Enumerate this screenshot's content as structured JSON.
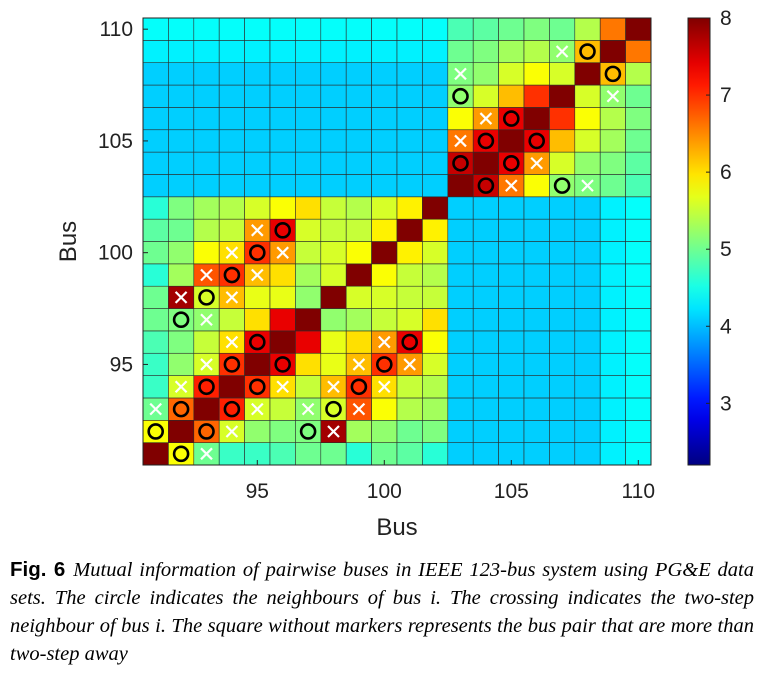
{
  "chart_data": {
    "type": "heatmap",
    "xlabel": "Bus",
    "ylabel": "Bus",
    "x_range": [
      91,
      110
    ],
    "y_range": [
      91,
      110
    ],
    "xticks": [
      95,
      100,
      105,
      110
    ],
    "yticks": [
      95,
      100,
      105,
      110
    ],
    "colorbar": {
      "min": 2.2,
      "max": 8,
      "ticks": [
        3,
        4,
        5,
        6,
        7,
        8
      ]
    },
    "cells": [
      [
        8.0,
        5.8,
        5.0,
        4.7,
        4.7,
        4.8,
        5.0,
        5.0,
        4.6,
        5.0,
        4.9,
        4.6,
        4.1,
        4.1,
        4.1,
        4.1,
        4.1,
        4.1,
        4.3,
        4.4
      ],
      [
        5.8,
        8.0,
        6.7,
        5.6,
        5.2,
        5.1,
        5.1,
        7.8,
        5.3,
        5.2,
        5.0,
        5.1,
        4.1,
        4.1,
        4.1,
        4.1,
        4.1,
        4.1,
        4.3,
        4.4
      ],
      [
        5.0,
        6.7,
        8.0,
        7.1,
        5.6,
        5.5,
        5.2,
        5.6,
        6.8,
        5.8,
        5.4,
        5.3,
        4.1,
        4.1,
        4.1,
        4.1,
        4.1,
        4.1,
        4.3,
        4.4
      ],
      [
        4.7,
        5.6,
        7.1,
        8.0,
        7.0,
        6.0,
        5.5,
        6.2,
        7.0,
        6.0,
        5.5,
        5.4,
        4.1,
        4.1,
        4.1,
        4.1,
        4.1,
        4.1,
        4.3,
        4.4
      ],
      [
        4.7,
        5.2,
        5.6,
        7.0,
        8.0,
        7.4,
        6.0,
        5.7,
        6.2,
        7.0,
        6.4,
        5.6,
        4.1,
        4.1,
        4.1,
        4.1,
        4.1,
        4.1,
        4.3,
        4.4
      ],
      [
        4.8,
        5.1,
        5.5,
        6.0,
        7.4,
        8.0,
        7.4,
        5.7,
        6.0,
        6.4,
        7.4,
        5.8,
        4.1,
        4.1,
        4.1,
        4.1,
        4.1,
        4.1,
        4.3,
        4.4
      ],
      [
        5.0,
        5.1,
        5.2,
        5.5,
        6.0,
        7.4,
        8.0,
        5.2,
        5.3,
        5.5,
        5.6,
        6.0,
        4.1,
        4.1,
        4.1,
        4.1,
        4.1,
        4.1,
        4.3,
        4.4
      ],
      [
        5.0,
        7.8,
        5.6,
        6.2,
        5.7,
        5.7,
        5.2,
        8.0,
        5.6,
        5.6,
        5.5,
        5.5,
        4.1,
        4.1,
        4.1,
        4.1,
        4.1,
        4.1,
        4.3,
        4.4
      ],
      [
        4.6,
        5.3,
        6.8,
        7.0,
        6.2,
        6.0,
        5.3,
        5.6,
        8.0,
        5.8,
        5.5,
        5.4,
        4.1,
        4.1,
        4.1,
        4.1,
        4.1,
        4.1,
        4.3,
        4.4
      ],
      [
        5.0,
        5.2,
        5.8,
        6.0,
        7.0,
        6.4,
        5.5,
        5.6,
        5.8,
        8.0,
        5.9,
        5.6,
        4.1,
        4.1,
        4.1,
        4.1,
        4.1,
        4.1,
        4.3,
        4.4
      ],
      [
        4.9,
        5.0,
        5.4,
        5.5,
        6.4,
        7.4,
        5.6,
        5.5,
        5.5,
        5.9,
        8.0,
        5.9,
        4.1,
        4.1,
        4.1,
        4.1,
        4.1,
        4.1,
        4.3,
        4.4
      ],
      [
        4.6,
        5.1,
        5.3,
        5.4,
        5.6,
        5.8,
        6.0,
        5.5,
        5.4,
        5.6,
        5.9,
        8.0,
        4.1,
        4.1,
        4.1,
        4.1,
        4.1,
        4.1,
        4.3,
        4.4
      ],
      [
        4.1,
        4.1,
        4.1,
        4.1,
        4.1,
        4.1,
        4.1,
        4.1,
        4.1,
        4.1,
        4.1,
        4.1,
        8.0,
        7.6,
        6.6,
        5.8,
        5.2,
        5.1,
        5.0,
        4.8
      ],
      [
        4.1,
        4.1,
        4.1,
        4.1,
        4.1,
        4.1,
        4.1,
        4.1,
        4.1,
        4.1,
        4.1,
        4.1,
        7.6,
        8.0,
        7.4,
        6.4,
        5.6,
        5.2,
        5.1,
        4.9
      ],
      [
        4.1,
        4.1,
        4.1,
        4.1,
        4.1,
        4.1,
        4.1,
        4.1,
        4.1,
        4.1,
        4.1,
        4.1,
        6.6,
        7.4,
        8.0,
        7.4,
        6.2,
        5.6,
        5.3,
        5.0
      ],
      [
        4.1,
        4.1,
        4.1,
        4.1,
        4.1,
        4.1,
        4.1,
        4.1,
        4.1,
        4.1,
        4.1,
        4.1,
        5.8,
        6.4,
        7.4,
        8.0,
        7.0,
        5.8,
        5.4,
        5.1
      ],
      [
        4.1,
        4.1,
        4.1,
        4.1,
        4.1,
        4.1,
        4.1,
        4.1,
        4.1,
        4.1,
        4.1,
        4.1,
        5.2,
        5.6,
        6.2,
        7.0,
        8.0,
        5.6,
        5.2,
        5.0
      ],
      [
        4.1,
        4.1,
        4.1,
        4.1,
        4.1,
        4.1,
        4.1,
        4.1,
        4.1,
        4.1,
        4.1,
        4.1,
        5.1,
        5.2,
        5.6,
        5.8,
        5.6,
        8.0,
        6.2,
        5.4
      ],
      [
        4.3,
        4.3,
        4.3,
        4.3,
        4.3,
        4.3,
        4.3,
        4.3,
        4.3,
        4.3,
        4.3,
        4.3,
        5.0,
        5.1,
        5.3,
        5.4,
        5.2,
        6.2,
        8.0,
        6.6
      ],
      [
        4.4,
        4.4,
        4.4,
        4.4,
        4.4,
        4.4,
        4.4,
        4.4,
        4.4,
        4.4,
        4.4,
        4.4,
        4.8,
        4.9,
        5.0,
        5.1,
        5.0,
        5.4,
        6.6,
        8.0
      ]
    ],
    "markers": {
      "circle": [
        [
          92,
          91
        ],
        [
          91,
          92
        ],
        [
          93,
          92
        ],
        [
          92,
          93
        ],
        [
          94,
          93
        ],
        [
          93,
          94
        ],
        [
          95,
          94
        ],
        [
          94,
          95
        ],
        [
          96,
          95
        ],
        [
          95,
          96
        ],
        [
          97,
          92
        ],
        [
          92,
          97
        ],
        [
          98,
          93
        ],
        [
          93,
          98
        ],
        [
          99,
          94
        ],
        [
          94,
          99
        ],
        [
          100,
          95
        ],
        [
          95,
          100
        ],
        [
          101,
          96
        ],
        [
          96,
          101
        ],
        [
          104,
          103
        ],
        [
          103,
          104
        ],
        [
          105,
          104
        ],
        [
          104,
          105
        ],
        [
          106,
          105
        ],
        [
          105,
          106
        ],
        [
          107,
          103
        ],
        [
          103,
          107
        ],
        [
          108,
          109
        ],
        [
          109,
          108
        ]
      ],
      "cross": [
        [
          93,
          91
        ],
        [
          91,
          93
        ],
        [
          94,
          92
        ],
        [
          92,
          94
        ],
        [
          95,
          93
        ],
        [
          93,
          95
        ],
        [
          96,
          94
        ],
        [
          94,
          96
        ],
        [
          97,
          93
        ],
        [
          93,
          97
        ],
        [
          98,
          92
        ],
        [
          92,
          98
        ],
        [
          98,
          94
        ],
        [
          94,
          98
        ],
        [
          99,
          93
        ],
        [
          93,
          99
        ],
        [
          99,
          95
        ],
        [
          95,
          99
        ],
        [
          100,
          94
        ],
        [
          94,
          100
        ],
        [
          100,
          96
        ],
        [
          96,
          100
        ],
        [
          101,
          95
        ],
        [
          95,
          101
        ],
        [
          105,
          103
        ],
        [
          103,
          105
        ],
        [
          106,
          104
        ],
        [
          104,
          106
        ],
        [
          108,
          103
        ],
        [
          103,
          108
        ],
        [
          109,
          107
        ],
        [
          107,
          109
        ]
      ]
    }
  },
  "caption": {
    "label": "Fig. 6",
    "text": "Mutual information of pairwise buses in IEEE 123-bus system using PG&E data sets. The circle indicates the neighbours of bus i. The crossing indicates the two-step neighbour of bus i. The square without markers represents the bus pair that are more than two-step away"
  }
}
